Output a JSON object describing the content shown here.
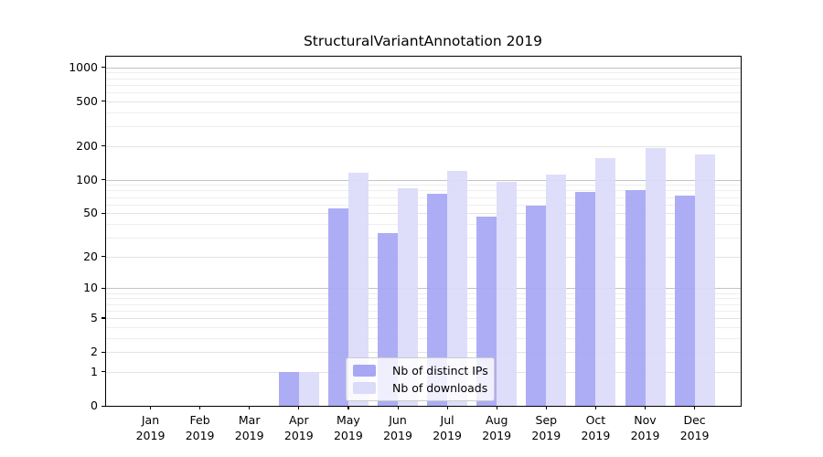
{
  "chart_data": {
    "type": "bar",
    "title": "StructuralVariantAnnotation 2019",
    "year": "2019",
    "categories": [
      "Jan",
      "Feb",
      "Mar",
      "Apr",
      "May",
      "Jun",
      "Jul",
      "Aug",
      "Sep",
      "Oct",
      "Nov",
      "Dec"
    ],
    "series": [
      {
        "name": "Nb of distinct IPs",
        "color": "#a7a7f4",
        "values": [
          0,
          0,
          0,
          1,
          55,
          33,
          75,
          47,
          58,
          78,
          81,
          72
        ]
      },
      {
        "name": "Nb of downloads",
        "color": "#dbdbfa",
        "values": [
          0,
          0,
          0,
          1,
          115,
          84,
          119,
          95,
          112,
          157,
          193,
          168
        ]
      }
    ],
    "yscale": "log1p",
    "yticks": [
      0,
      1,
      2,
      5,
      10,
      20,
      50,
      100,
      200,
      500,
      1000
    ],
    "ylim": [
      0,
      1262
    ],
    "grid": true,
    "grid_minor_steps": [
      2,
      3,
      4,
      5,
      6,
      7,
      8,
      9
    ],
    "legend_position": "inside-bottom-center",
    "colors": {
      "axis": "#000000",
      "grid_decade": "#c3c3c3",
      "grid_labeled": "#e3e3e3",
      "grid_minor": "#eeeeee",
      "legend_border": "#cccccc",
      "background": "#ffffff"
    }
  }
}
